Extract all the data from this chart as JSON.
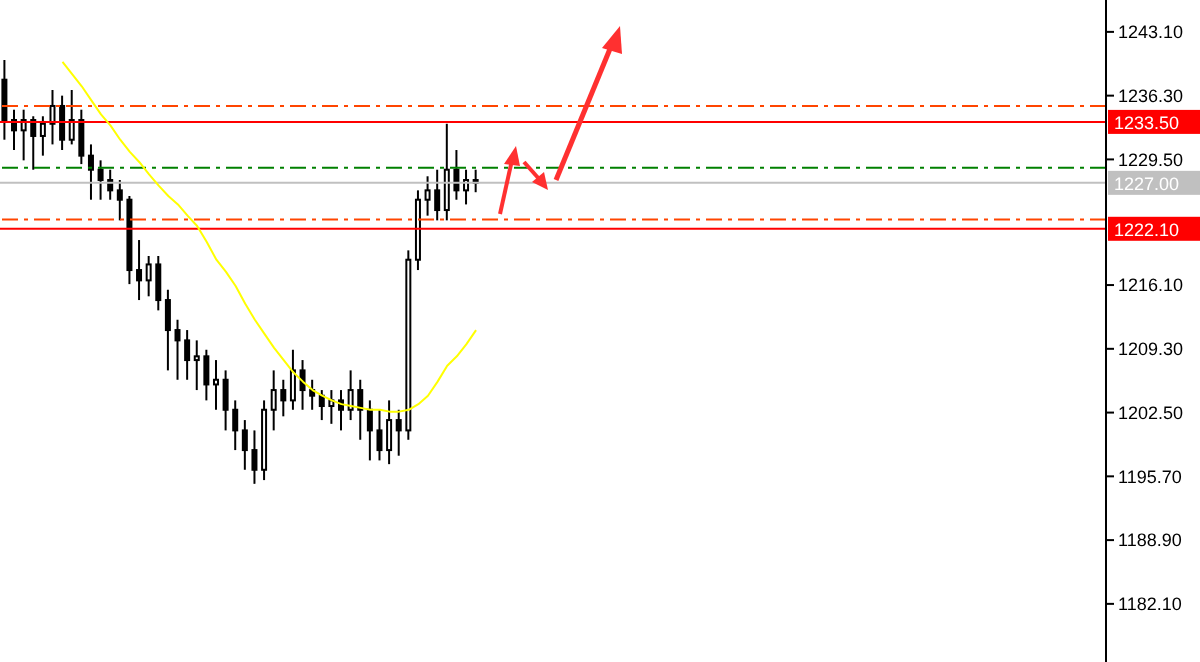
{
  "chart_data": {
    "type": "candlestick",
    "color": "#000000",
    "categories": [
      null,
      null,
      null,
      null,
      null,
      null,
      null,
      null,
      null,
      null,
      null,
      null,
      null,
      null,
      null,
      null,
      null,
      null,
      null,
      null,
      null,
      null,
      null,
      null,
      null,
      null,
      null,
      null,
      null,
      null,
      null,
      null,
      null,
      null,
      null,
      null,
      null,
      null,
      null,
      null,
      null,
      null,
      null,
      null,
      null,
      null,
      null,
      null,
      null,
      null,
      null,
      null,
      null,
      null,
      null,
      null,
      null,
      null,
      null,
      null,
      null,
      null,
      null,
      null,
      null,
      null,
      null,
      null,
      null,
      null,
      null,
      null,
      null,
      null,
      null,
      null,
      null,
      null,
      null,
      null,
      null,
      null,
      null,
      null,
      null,
      null,
      null,
      null,
      null,
      null,
      null,
      null,
      null,
      null,
      null,
      null,
      null,
      null,
      null,
      null,
      null,
      null,
      null,
      null,
      null,
      null,
      null,
      null,
      null,
      null,
      null,
      null,
      null,
      null,
      null
    ],
    "ohlc": [
      [
        1238.0,
        1240.1,
        1231.6,
        1233.7
      ],
      [
        1233.7,
        1234.8,
        1230.5,
        1232.6
      ],
      [
        1232.6,
        1234.8,
        1229.4,
        1233.7
      ],
      [
        1233.7,
        1234.1,
        1228.4,
        1232.0
      ],
      [
        1232.0,
        1234.1,
        1229.9,
        1233.3
      ],
      [
        1233.3,
        1236.9,
        1231.1,
        1235.2
      ],
      [
        1235.2,
        1236.3,
        1230.5,
        1231.6
      ],
      [
        1231.6,
        1236.9,
        1231.1,
        1233.7
      ],
      [
        1233.7,
        1234.8,
        1229.0,
        1229.9
      ],
      [
        1229.9,
        1231.1,
        1225.2,
        1228.4
      ],
      [
        1228.4,
        1229.4,
        1225.2,
        1227.3
      ],
      [
        1227.3,
        1228.4,
        1225.2,
        1226.2
      ],
      [
        1226.2,
        1227.3,
        1223.0,
        1225.2
      ],
      [
        1225.2,
        1225.6,
        1216.2,
        1217.7
      ],
      [
        1217.7,
        1220.9,
        1214.5,
        1216.6
      ],
      [
        1216.6,
        1219.2,
        1214.9,
        1218.3
      ],
      [
        1218.3,
        1219.2,
        1213.4,
        1214.5
      ],
      [
        1214.5,
        1215.6,
        1207.0,
        1211.3
      ],
      [
        1211.3,
        1212.4,
        1206.0,
        1210.2
      ],
      [
        1210.2,
        1211.3,
        1206.0,
        1208.1
      ],
      [
        1208.1,
        1210.2,
        1204.9,
        1208.5
      ],
      [
        1208.5,
        1209.2,
        1203.8,
        1205.5
      ],
      [
        1205.5,
        1208.1,
        1202.8,
        1206.0
      ],
      [
        1206.0,
        1207.0,
        1200.6,
        1202.8
      ],
      [
        1202.8,
        1203.8,
        1198.5,
        1200.6
      ],
      [
        1200.6,
        1201.7,
        1196.4,
        1198.5
      ],
      [
        1198.5,
        1200.6,
        1194.9,
        1196.4
      ],
      [
        1196.4,
        1203.8,
        1195.3,
        1202.8
      ],
      [
        1202.8,
        1207.0,
        1200.6,
        1204.9
      ],
      [
        1204.9,
        1206.0,
        1202.1,
        1203.8
      ],
      [
        1203.8,
        1209.2,
        1202.8,
        1207.0
      ],
      [
        1207.0,
        1208.1,
        1202.8,
        1204.9
      ],
      [
        1204.9,
        1206.0,
        1202.8,
        1204.3
      ],
      [
        1204.3,
        1204.9,
        1201.7,
        1203.2
      ],
      [
        1203.2,
        1204.9,
        1201.3,
        1203.8
      ],
      [
        1203.8,
        1204.9,
        1200.6,
        1202.8
      ],
      [
        1202.8,
        1207.0,
        1201.7,
        1204.9
      ],
      [
        1204.9,
        1206.0,
        1199.6,
        1202.8
      ],
      [
        1202.8,
        1203.8,
        1197.4,
        1200.6
      ],
      [
        1200.6,
        1202.8,
        1197.4,
        1198.5
      ],
      [
        1198.5,
        1203.8,
        1197.0,
        1201.7
      ],
      [
        1201.7,
        1202.8,
        1197.9,
        1200.6
      ],
      [
        1200.6,
        1219.8,
        1199.6,
        1218.8
      ],
      [
        1218.8,
        1226.2,
        1217.7,
        1225.2
      ],
      [
        1225.2,
        1227.7,
        1223.5,
        1226.2
      ],
      [
        1226.2,
        1228.4,
        1223.0,
        1224.1
      ],
      [
        1224.1,
        1233.3,
        1223.0,
        1228.4
      ],
      [
        1228.4,
        1230.5,
        1225.2,
        1226.2
      ],
      [
        1226.2,
        1228.4,
        1224.7,
        1227.3
      ],
      [
        1227.3,
        1228.4,
        1226.0,
        1227.0
      ],
      null,
      null,
      null,
      null,
      null,
      null,
      null,
      null,
      null,
      null,
      null,
      null,
      null,
      null,
      null,
      null,
      null,
      null,
      null,
      null,
      null,
      null,
      null,
      null,
      null,
      null,
      null,
      null,
      null,
      null,
      null,
      null,
      null,
      null,
      null,
      null,
      null,
      null,
      null,
      null,
      null,
      null,
      null,
      null,
      null,
      null,
      null,
      null,
      null,
      null,
      null,
      null,
      null,
      null,
      null,
      null,
      null,
      null,
      null,
      null,
      null,
      null,
      null,
      null,
      null
    ],
    "series": [
      {
        "type": "line",
        "color": "#ffff00",
        "values": [
          null,
          null,
          null,
          null,
          null,
          null,
          1239.9,
          1238.6,
          1237.3,
          1235.8,
          1234.3,
          1233.1,
          1231.6,
          1230.3,
          1229.2,
          1227.9,
          1226.7,
          1225.6,
          1224.7,
          1223.5,
          1222.4,
          1220.7,
          1218.8,
          1217.5,
          1216.0,
          1214.1,
          1212.4,
          1210.9,
          1209.4,
          1208.1,
          1206.8,
          1205.8,
          1204.9,
          1204.3,
          1203.8,
          1203.4,
          1203.2,
          1203.0,
          1202.8,
          1202.8,
          1202.6,
          1202.6,
          1202.8,
          1203.4,
          1204.3,
          1205.8,
          1207.5,
          1208.5,
          1209.8,
          1211.3,
          null,
          null,
          null,
          null,
          null,
          null,
          null,
          null,
          null,
          null,
          null,
          null,
          null,
          null,
          null,
          null,
          null,
          null,
          null,
          null,
          null,
          null,
          null,
          null,
          null,
          null,
          null,
          null,
          null,
          null,
          null,
          null,
          null,
          null,
          null,
          null,
          null,
          null,
          null,
          null,
          null,
          null,
          null,
          null,
          null,
          null,
          null,
          null,
          null,
          null,
          null,
          null,
          null,
          null,
          null,
          null,
          null,
          null,
          null,
          null,
          null,
          null,
          null,
          null,
          null
        ]
      }
    ],
    "ylim": [
      1175.9,
      1246.5
    ],
    "yticks": [
      {
        "value": 1243.1,
        "label": "1243.10"
      },
      {
        "value": 1236.3,
        "label": "1236.30"
      },
      {
        "value": 1229.5,
        "label": "1229.50"
      },
      {
        "value": 1216.1,
        "label": "1216.10"
      },
      {
        "value": 1209.3,
        "label": "1209.30"
      },
      {
        "value": 1202.5,
        "label": "1202.50"
      },
      {
        "value": 1195.7,
        "label": "1195.70"
      },
      {
        "value": 1188.9,
        "label": "1188.90"
      },
      {
        "value": 1182.1,
        "label": "1182.10"
      }
    ],
    "tick_labels": "y",
    "ref_lines": [
      {
        "axis": "y",
        "value": 1235.2,
        "label": null,
        "color": "#ff4500",
        "line_style": "dashed"
      },
      {
        "axis": "y",
        "value": 1233.5,
        "label": "1233.50",
        "color": "#ff0000",
        "line_style": "solid"
      },
      {
        "axis": "y",
        "value": 1228.6,
        "label": null,
        "color": "#008000",
        "line_style": "dashed"
      },
      {
        "axis": "y",
        "value": 1227.0,
        "label": "1227.00",
        "color": "#c0c0c0",
        "line_style": "solid"
      },
      {
        "axis": "y",
        "value": 1223.1,
        "label": null,
        "color": "#ff4500",
        "line_style": "dashed"
      },
      {
        "axis": "y",
        "value": 1222.1,
        "label": "1222.10",
        "color": "#ff0000",
        "line_style": "solid"
      }
    ]
  }
}
